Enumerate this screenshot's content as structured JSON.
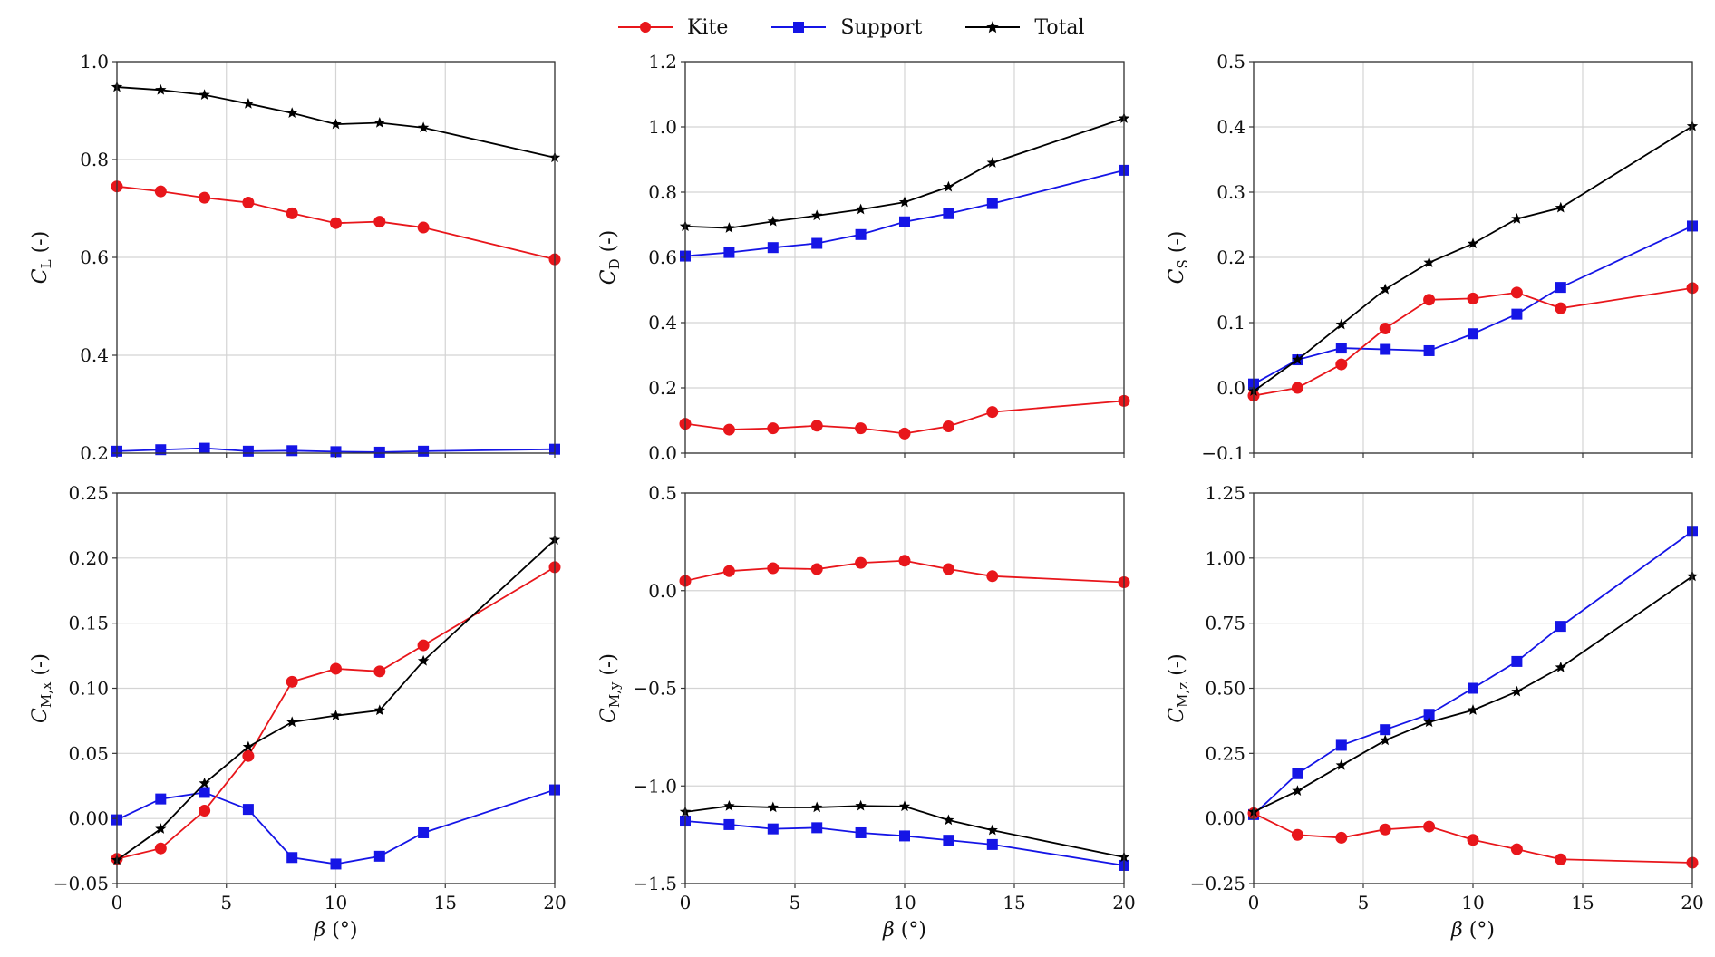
{
  "series_styles": [
    {
      "name": "Kite",
      "color": "#e8161b",
      "marker": "circle"
    },
    {
      "name": "Support",
      "color": "#1515e6",
      "marker": "square"
    },
    {
      "name": "Total",
      "color": "#000000",
      "marker": "star"
    }
  ],
  "chart_data": [
    {
      "type": "line",
      "id": "CL",
      "ylabel_main": "C",
      "ylabel_sub": "L",
      "ylabel_tail": " (-)",
      "xlabel_main": "β",
      "xlabel_tail": " (°)",
      "show_xlabel": false,
      "xlim": [
        0,
        20
      ],
      "ylim": [
        0.2,
        1.0
      ],
      "xticks": [
        0,
        5,
        10,
        15,
        20
      ],
      "xtick_labels": [
        "",
        "",
        "",
        "",
        ""
      ],
      "yticks": [
        0.2,
        0.4,
        0.6,
        0.8,
        1.0
      ],
      "ytick_labels": [
        "0.2",
        "0.4",
        "0.6",
        "0.8",
        "1.0"
      ],
      "grid": true,
      "x": [
        0,
        2,
        4,
        6,
        8,
        10,
        12,
        14,
        20
      ],
      "series": [
        {
          "name": "Kite",
          "values": [
            0.745,
            0.735,
            0.722,
            0.712,
            0.69,
            0.67,
            0.673,
            0.661,
            0.596
          ]
        },
        {
          "name": "Support",
          "values": [
            0.204,
            0.207,
            0.21,
            0.204,
            0.205,
            0.203,
            0.202,
            0.204,
            0.208
          ]
        },
        {
          "name": "Total",
          "values": [
            0.948,
            0.942,
            0.932,
            0.914,
            0.895,
            0.872,
            0.875,
            0.865,
            0.804
          ]
        }
      ]
    },
    {
      "type": "line",
      "id": "CD",
      "ylabel_main": "C",
      "ylabel_sub": "D",
      "ylabel_tail": " (-)",
      "xlabel_main": "β",
      "xlabel_tail": " (°)",
      "show_xlabel": false,
      "xlim": [
        0,
        20
      ],
      "ylim": [
        0.0,
        1.2
      ],
      "xticks": [
        0,
        5,
        10,
        15,
        20
      ],
      "xtick_labels": [
        "",
        "",
        "",
        "",
        ""
      ],
      "yticks": [
        0.0,
        0.2,
        0.4,
        0.6,
        0.8,
        1.0,
        1.2
      ],
      "ytick_labels": [
        "0.0",
        "0.2",
        "0.4",
        "0.6",
        "0.8",
        "1.0",
        "1.2"
      ],
      "grid": true,
      "x": [
        0,
        2,
        4,
        6,
        8,
        10,
        12,
        14,
        20
      ],
      "series": [
        {
          "name": "Kite",
          "values": [
            0.09,
            0.072,
            0.076,
            0.084,
            0.076,
            0.06,
            0.082,
            0.126,
            0.16
          ]
        },
        {
          "name": "Support",
          "values": [
            0.604,
            0.615,
            0.63,
            0.643,
            0.67,
            0.709,
            0.734,
            0.765,
            0.867
          ]
        },
        {
          "name": "Total",
          "values": [
            0.695,
            0.69,
            0.71,
            0.728,
            0.747,
            0.769,
            0.816,
            0.89,
            1.026
          ]
        }
      ]
    },
    {
      "type": "line",
      "id": "CS",
      "ylabel_main": "C",
      "ylabel_sub": "S",
      "ylabel_tail": " (-)",
      "xlabel_main": "β",
      "xlabel_tail": " (°)",
      "show_xlabel": false,
      "xlim": [
        0,
        20
      ],
      "ylim": [
        -0.1,
        0.5
      ],
      "xticks": [
        0,
        5,
        10,
        15,
        20
      ],
      "xtick_labels": [
        "",
        "",
        "",
        "",
        ""
      ],
      "yticks": [
        -0.1,
        0.0,
        0.1,
        0.2,
        0.3,
        0.4,
        0.5
      ],
      "ytick_labels": [
        "−0.1",
        "0.0",
        "0.1",
        "0.2",
        "0.3",
        "0.4",
        "0.5"
      ],
      "grid": true,
      "x": [
        0,
        2,
        4,
        6,
        8,
        10,
        12,
        14,
        20
      ],
      "series": [
        {
          "name": "Kite",
          "values": [
            -0.012,
            0.0,
            0.036,
            0.091,
            0.135,
            0.137,
            0.146,
            0.122,
            0.153
          ]
        },
        {
          "name": "Support",
          "values": [
            0.006,
            0.043,
            0.061,
            0.059,
            0.057,
            0.083,
            0.113,
            0.154,
            0.248
          ]
        },
        {
          "name": "Total",
          "values": [
            -0.005,
            0.043,
            0.097,
            0.151,
            0.192,
            0.221,
            0.259,
            0.276,
            0.401
          ]
        }
      ]
    },
    {
      "type": "line",
      "id": "CMx",
      "ylabel_main": "C",
      "ylabel_sub": "M,x",
      "ylabel_tail": " (-)",
      "xlabel_main": "β",
      "xlabel_tail": " (°)",
      "show_xlabel": true,
      "xlim": [
        0,
        20
      ],
      "ylim": [
        -0.05,
        0.25
      ],
      "xticks": [
        0,
        5,
        10,
        15,
        20
      ],
      "xtick_labels": [
        "0",
        "5",
        "10",
        "15",
        "20"
      ],
      "yticks": [
        -0.05,
        0.0,
        0.05,
        0.1,
        0.15,
        0.2,
        0.25
      ],
      "ytick_labels": [
        "−0.05",
        "0.00",
        "0.05",
        "0.10",
        "0.15",
        "0.20",
        "0.25"
      ],
      "grid": true,
      "x": [
        0,
        2,
        4,
        6,
        8,
        10,
        12,
        14,
        20
      ],
      "series": [
        {
          "name": "Kite",
          "values": [
            -0.031,
            -0.023,
            0.006,
            0.048,
            0.105,
            0.115,
            0.113,
            0.133,
            0.193
          ]
        },
        {
          "name": "Support",
          "values": [
            -0.001,
            0.015,
            0.02,
            0.007,
            -0.03,
            -0.035,
            -0.029,
            -0.011,
            0.022
          ]
        },
        {
          "name": "Total",
          "values": [
            -0.032,
            -0.008,
            0.027,
            0.055,
            0.074,
            0.079,
            0.083,
            0.121,
            0.214
          ]
        }
      ]
    },
    {
      "type": "line",
      "id": "CMy",
      "ylabel_main": "C",
      "ylabel_sub": "M,y",
      "ylabel_tail": " (-)",
      "xlabel_main": "β",
      "xlabel_tail": " (°)",
      "show_xlabel": true,
      "xlim": [
        0,
        20
      ],
      "ylim": [
        -1.5,
        0.5
      ],
      "xticks": [
        0,
        5,
        10,
        15,
        20
      ],
      "xtick_labels": [
        "0",
        "5",
        "10",
        "15",
        "20"
      ],
      "yticks": [
        -1.5,
        -1.0,
        -0.5,
        0.0,
        0.5
      ],
      "ytick_labels": [
        "−1.5",
        "−1.0",
        "−0.5",
        "0.0",
        "0.5"
      ],
      "grid": true,
      "x": [
        0,
        2,
        4,
        6,
        8,
        10,
        12,
        14,
        20
      ],
      "series": [
        {
          "name": "Kite",
          "values": [
            0.05,
            0.1,
            0.115,
            0.11,
            0.142,
            0.153,
            0.11,
            0.074,
            0.043
          ]
        },
        {
          "name": "Support",
          "values": [
            -1.18,
            -1.198,
            -1.22,
            -1.214,
            -1.24,
            -1.256,
            -1.278,
            -1.3,
            -1.407
          ]
        },
        {
          "name": "Total",
          "values": [
            -1.133,
            -1.103,
            -1.11,
            -1.11,
            -1.102,
            -1.105,
            -1.175,
            -1.227,
            -1.365
          ]
        }
      ]
    },
    {
      "type": "line",
      "id": "CMz",
      "ylabel_main": "C",
      "ylabel_sub": "M,z",
      "ylabel_tail": " (-)",
      "xlabel_main": "β",
      "xlabel_tail": " (°)",
      "show_xlabel": true,
      "xlim": [
        0,
        20
      ],
      "ylim": [
        -0.25,
        1.25
      ],
      "xticks": [
        0,
        5,
        10,
        15,
        20
      ],
      "xtick_labels": [
        "0",
        "5",
        "10",
        "15",
        "20"
      ],
      "yticks": [
        -0.25,
        0.0,
        0.25,
        0.5,
        0.75,
        1.0,
        1.25
      ],
      "ytick_labels": [
        "−0.25",
        "0.00",
        "0.25",
        "0.50",
        "0.75",
        "1.00",
        "1.25"
      ],
      "grid": true,
      "x": [
        0,
        2,
        4,
        6,
        8,
        10,
        12,
        14,
        20
      ],
      "series": [
        {
          "name": "Kite",
          "values": [
            0.02,
            -0.063,
            -0.074,
            -0.042,
            -0.031,
            -0.082,
            -0.118,
            -0.157,
            -0.17
          ]
        },
        {
          "name": "Support",
          "values": [
            0.015,
            0.172,
            0.281,
            0.341,
            0.4,
            0.5,
            0.603,
            0.738,
            1.103
          ]
        },
        {
          "name": "Total",
          "values": [
            0.025,
            0.106,
            0.204,
            0.3,
            0.37,
            0.416,
            0.487,
            0.58,
            0.93
          ]
        }
      ]
    }
  ]
}
